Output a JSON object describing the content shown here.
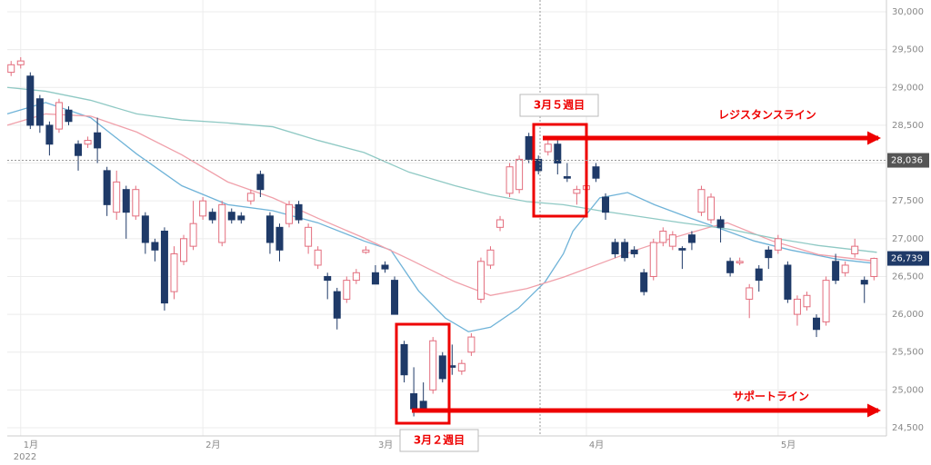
{
  "chart_data": {
    "type": "candlestick",
    "categories": [
      null,
      "1月",
      null,
      null,
      null,
      null,
      null,
      null,
      null,
      null,
      null,
      null,
      null,
      null,
      null,
      null,
      null,
      null,
      null,
      null,
      "2月",
      null,
      null,
      null,
      null,
      null,
      null,
      null,
      null,
      null,
      null,
      null,
      null,
      null,
      null,
      null,
      null,
      null,
      "3月",
      null,
      null,
      null,
      null,
      null,
      null,
      null,
      null,
      null,
      null,
      null,
      null,
      null,
      null,
      null,
      null,
      null,
      null,
      null,
      null,
      null,
      "4月",
      null,
      null,
      null,
      null,
      null,
      null,
      null,
      null,
      null,
      null,
      null,
      null,
      null,
      null,
      null,
      null,
      null,
      null,
      null,
      "5月",
      null,
      null,
      null,
      null,
      null,
      null,
      null,
      null,
      null,
      null
    ],
    "year_label": "2022",
    "xlim": [
      -0.4,
      91.3
    ],
    "ylim": [
      24500,
      30000
    ],
    "yticks": [
      {
        "value": 24500,
        "label": "24,500"
      },
      {
        "value": 25000,
        "label": "25,000"
      },
      {
        "value": 25500,
        "label": "25,500"
      },
      {
        "value": 26000,
        "label": "26,000"
      },
      {
        "value": 26500,
        "label": "26,500"
      },
      {
        "value": 27000,
        "label": "27,000"
      },
      {
        "value": 27500,
        "label": "27,500"
      },
      {
        "value": 28000,
        "label": "28,000"
      },
      {
        "value": 28500,
        "label": "28,500"
      },
      {
        "value": 29000,
        "label": "29,000"
      },
      {
        "value": 29500,
        "label": "29,500"
      },
      {
        "value": 30000,
        "label": "30,000"
      }
    ],
    "grid": true,
    "up_color": "#e36d7d",
    "down_color": "#1f3a68",
    "ohlc": [
      [
        29200,
        29350,
        29150,
        29300
      ],
      [
        29300,
        29400,
        29250,
        29350
      ],
      [
        29150,
        29200,
        28450,
        28500
      ],
      [
        28850,
        28900,
        28400,
        28500
      ],
      [
        28500,
        28550,
        28100,
        28250
      ],
      [
        28450,
        28850,
        28400,
        28800
      ],
      [
        28700,
        28750,
        28500,
        28550
      ],
      [
        28250,
        28300,
        27900,
        28100
      ],
      [
        28250,
        28350,
        28200,
        28300
      ],
      [
        28400,
        28600,
        28000,
        28200
      ],
      [
        27900,
        27950,
        27300,
        27450
      ],
      [
        27350,
        27900,
        27250,
        27750
      ],
      [
        27650,
        27700,
        27000,
        27350
      ],
      [
        27300,
        27700,
        27250,
        27650
      ],
      [
        27300,
        27350,
        26800,
        26950
      ],
      [
        26950,
        27000,
        26700,
        26850
      ],
      [
        27100,
        27150,
        26050,
        26150
      ],
      [
        26300,
        26900,
        26200,
        26800
      ],
      [
        26700,
        27050,
        26650,
        27000
      ],
      [
        26900,
        27500,
        26850,
        27200
      ],
      [
        27300,
        27550,
        27250,
        27500
      ],
      [
        27350,
        27400,
        27200,
        27250
      ],
      [
        26950,
        27500,
        26900,
        27450
      ],
      [
        27350,
        27400,
        27200,
        27250
      ],
      [
        27300,
        27350,
        27200,
        27250
      ],
      [
        27500,
        27650,
        27450,
        27600
      ],
      [
        27850,
        27900,
        27550,
        27650
      ],
      [
        27300,
        27350,
        26800,
        26950
      ],
      [
        27150,
        27200,
        26700,
        26850
      ],
      [
        27200,
        27500,
        27150,
        27450
      ],
      [
        27450,
        27500,
        27200,
        27250
      ],
      [
        26900,
        27200,
        26800,
        27150
      ],
      [
        26650,
        26900,
        26600,
        26850
      ],
      [
        26500,
        26550,
        26200,
        26450
      ],
      [
        26300,
        26350,
        25800,
        25950
      ],
      [
        26200,
        26500,
        26150,
        26450
      ],
      [
        26450,
        26600,
        26400,
        26550
      ],
      [
        26820,
        26900,
        26800,
        26850
      ],
      [
        26550,
        26650,
        26400,
        26400
      ],
      [
        26650,
        26700,
        26550,
        26600
      ],
      [
        26450,
        26500,
        26000,
        26000
      ],
      [
        25600,
        25650,
        25100,
        25200
      ],
      [
        24950,
        25300,
        24650,
        24750
      ],
      [
        24850,
        25100,
        24700,
        24750
      ],
      [
        25000,
        25700,
        24950,
        25650
      ],
      [
        25450,
        25500,
        25100,
        25150
      ],
      [
        25320,
        25600,
        25200,
        25300
      ],
      [
        25250,
        25400,
        25200,
        25350
      ],
      [
        25500,
        25750,
        25450,
        25700
      ],
      [
        26200,
        26750,
        26150,
        26700
      ],
      [
        26650,
        26900,
        26600,
        26850
      ],
      [
        27150,
        27300,
        27100,
        27250
      ],
      [
        27600,
        28000,
        27550,
        27950
      ],
      [
        27650,
        28100,
        27600,
        28050
      ],
      [
        28350,
        28400,
        28000,
        28050
      ],
      [
        28050,
        28100,
        27850,
        27900
      ],
      [
        28150,
        28300,
        28100,
        28250
      ],
      [
        28250,
        28300,
        27850,
        28000
      ],
      [
        27820,
        28000,
        27750,
        27800
      ],
      [
        27600,
        27700,
        27450,
        27650
      ],
      [
        27650,
        27750,
        27600,
        27700
      ],
      [
        27950,
        28000,
        27750,
        27800
      ],
      [
        27550,
        27600,
        27250,
        27350
      ],
      [
        26950,
        27000,
        26750,
        26800
      ],
      [
        26950,
        27000,
        26700,
        26750
      ],
      [
        26850,
        26900,
        26750,
        26800
      ],
      [
        26550,
        26600,
        26250,
        26300
      ],
      [
        26500,
        27000,
        26450,
        26950
      ],
      [
        26950,
        27150,
        26900,
        27100
      ],
      [
        26900,
        27100,
        26850,
        27050
      ],
      [
        26870,
        26900,
        26600,
        26850
      ],
      [
        27050,
        27100,
        26850,
        26950
      ],
      [
        27350,
        27700,
        27300,
        27650
      ],
      [
        27250,
        27600,
        27200,
        27550
      ],
      [
        27250,
        27300,
        26950,
        27150
      ],
      [
        26700,
        26750,
        26500,
        26550
      ],
      [
        26680,
        26750,
        26650,
        26700
      ],
      [
        26200,
        26400,
        25950,
        26350
      ],
      [
        26600,
        26650,
        26300,
        26450
      ],
      [
        26850,
        26900,
        26600,
        26750
      ],
      [
        26850,
        27050,
        26800,
        27000
      ],
      [
        26650,
        26700,
        26150,
        26200
      ],
      [
        26000,
        26250,
        25850,
        26200
      ],
      [
        26100,
        26300,
        26050,
        26250
      ],
      [
        25950,
        26000,
        25700,
        25800
      ],
      [
        25900,
        26500,
        25850,
        26450
      ],
      [
        26700,
        26800,
        26400,
        26450
      ],
      [
        26550,
        26700,
        26500,
        26650
      ],
      [
        26800,
        27000,
        26750,
        26900
      ],
      [
        26450,
        26500,
        26150,
        26400
      ],
      [
        26500,
        26750,
        26450,
        26739
      ]
    ],
    "lines": [
      {
        "color": "#6fb3d8",
        "x": [
          -0.4,
          3.6,
          8.3,
          13.1,
          17.8,
          22.6,
          27.3,
          32,
          36.8,
          39.6,
          42.5,
          45.3,
          47.7,
          50,
          52.9,
          55.7,
          57.6,
          58.6,
          61.4,
          64.3,
          67.1,
          70.9,
          74.7,
          77.5,
          81.3,
          86.1,
          90.3
        ],
        "values": [
          28650,
          28800,
          28600,
          28120,
          27700,
          27450,
          27370,
          27210,
          26970,
          26850,
          26310,
          25950,
          25770,
          25830,
          26080,
          26430,
          26800,
          27100,
          27540,
          27610,
          27450,
          27270,
          27100,
          26970,
          26850,
          26730,
          26670
        ]
      },
      {
        "color": "#f0a0aa",
        "x": [
          -0.4,
          3.6,
          8.3,
          13.1,
          17.8,
          22.6,
          27.3,
          32,
          36.8,
          41.5,
          46.3,
          50,
          53.8,
          57.6,
          61.4,
          65.2,
          69,
          72.8,
          74.7,
          79.4,
          84.2,
          90.3
        ],
        "values": [
          28500,
          28650,
          28620,
          28410,
          28110,
          27750,
          27540,
          27270,
          27010,
          26730,
          26430,
          26250,
          26340,
          26490,
          26670,
          26850,
          27010,
          27150,
          27210,
          26970,
          26790,
          26700
        ]
      },
      {
        "color": "#8fc9c4",
        "x": [
          -0.4,
          3.6,
          8.3,
          13.1,
          17.8,
          22.6,
          27.3,
          32,
          36.8,
          41.5,
          46.3,
          50,
          53.8,
          57.6,
          61.4,
          65.2,
          70,
          74.7,
          79.4,
          84.2,
          90.3
        ],
        "values": [
          29000,
          28950,
          28830,
          28650,
          28570,
          28530,
          28480,
          28300,
          28140,
          27880,
          27700,
          27580,
          27490,
          27450,
          27370,
          27300,
          27210,
          27130,
          27010,
          26910,
          26820
        ]
      }
    ],
    "crosshair_price": {
      "value": 28036,
      "label": "28,036"
    },
    "last_price": {
      "value": 26739,
      "label": "26,739"
    },
    "annotations": {
      "week5": "3月５週目",
      "week2": "3月２週目",
      "resistance": "レジスタンスライン",
      "support": "サポートライン"
    }
  }
}
